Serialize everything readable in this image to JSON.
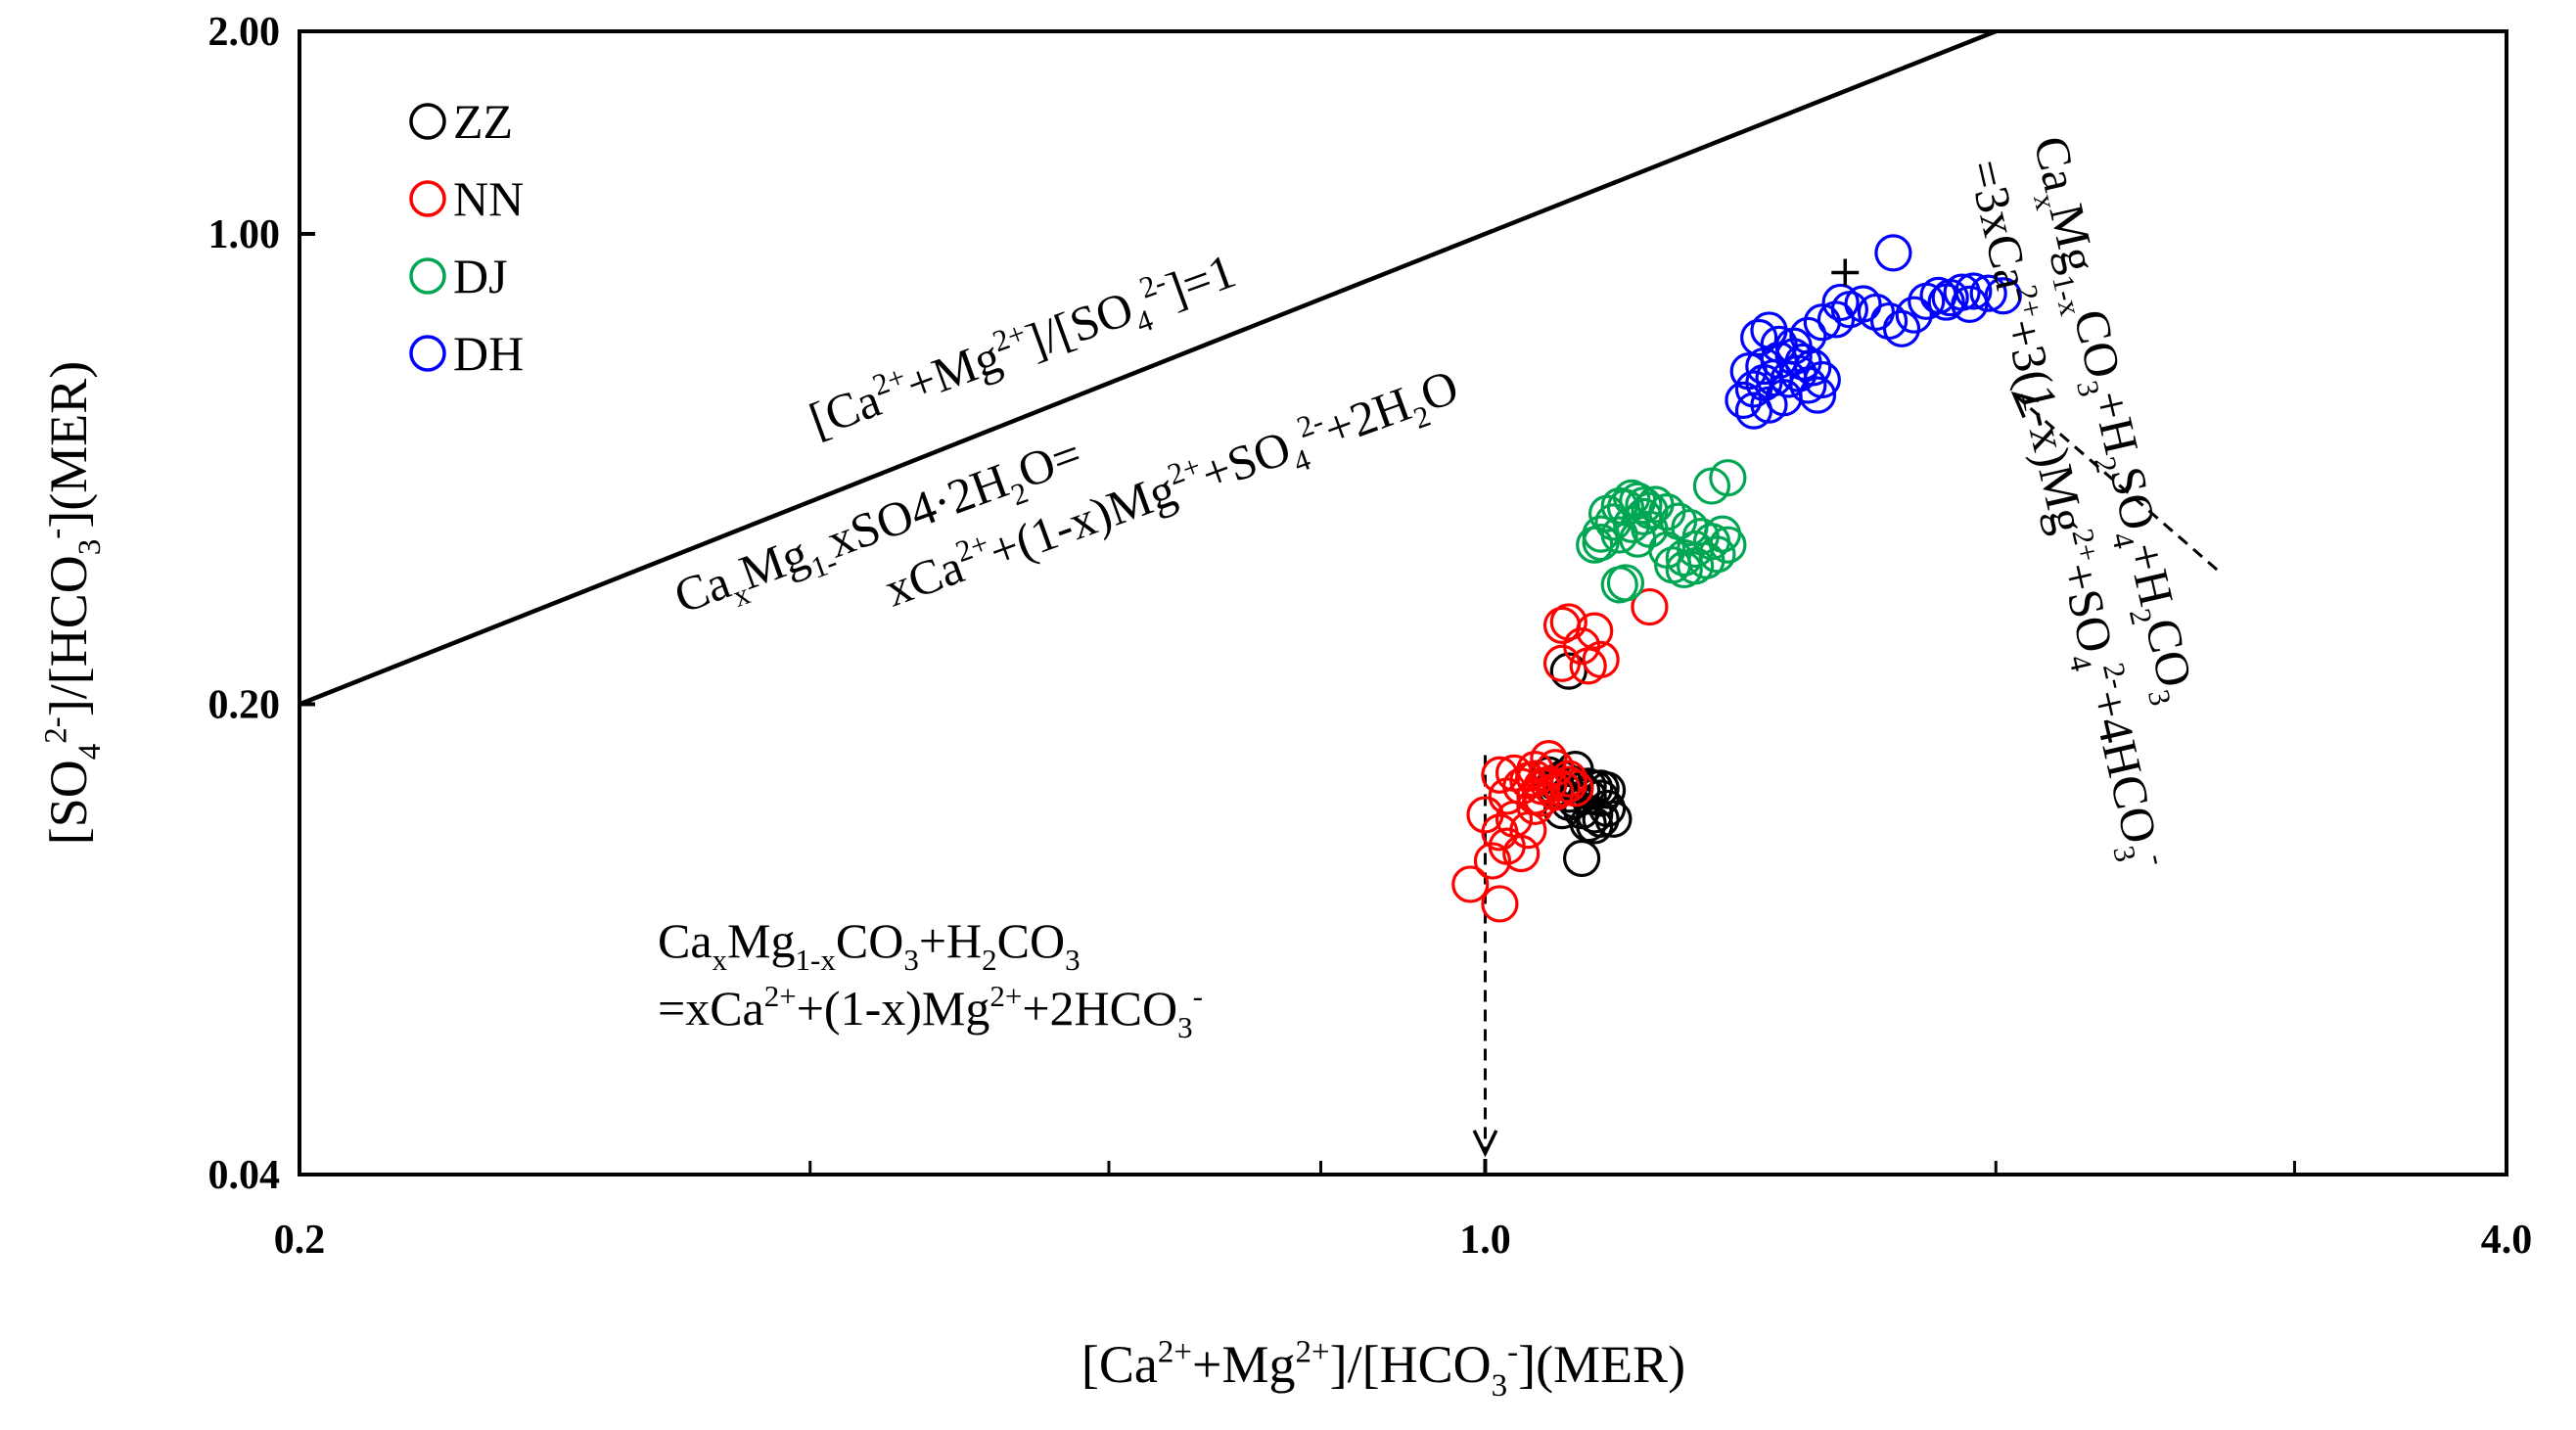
{
  "chart_data": {
    "type": "scatter",
    "x_scale": "log",
    "y_scale": "log",
    "xlim": [
      0.2,
      4.0
    ],
    "ylim": [
      0.04,
      2.0
    ],
    "x_ticks": [
      0.2,
      1.0,
      4.0
    ],
    "x_tick_labels": [
      "0.2",
      "1.0",
      "4.0"
    ],
    "y_ticks": [
      0.04,
      0.2,
      1.0,
      2.0
    ],
    "y_tick_labels": [
      "0.04",
      "0.20",
      "1.00",
      "2.00"
    ],
    "xlabel": "[Ca²⁺+Mg²⁺]/[HCO₃⁻](MER)",
    "ylabel": "[SO₄²⁻]/[HCO₃⁻](MER)",
    "legend_position": "top-left",
    "colors": {
      "ZZ": "#000000",
      "NN": "#ff0000",
      "DJ": "#00a651",
      "DH": "#0000ff"
    },
    "series": [
      {
        "name": "ZZ",
        "color": "#000000",
        "points": [
          [
            1.09,
            0.157
          ],
          [
            1.1,
            0.153
          ],
          [
            1.11,
            0.155
          ],
          [
            1.12,
            0.147
          ],
          [
            1.13,
            0.152
          ],
          [
            1.14,
            0.149
          ],
          [
            1.15,
            0.151
          ],
          [
            1.13,
            0.144
          ],
          [
            1.15,
            0.146
          ],
          [
            1.12,
            0.143
          ],
          [
            1.11,
            0.139
          ],
          [
            1.14,
            0.139
          ],
          [
            1.16,
            0.137
          ],
          [
            1.17,
            0.145
          ],
          [
            1.18,
            0.149
          ],
          [
            1.17,
            0.15
          ],
          [
            1.15,
            0.133
          ],
          [
            1.16,
            0.132
          ],
          [
            1.17,
            0.135
          ],
          [
            1.18,
            0.14
          ],
          [
            1.14,
            0.118
          ],
          [
            1.12,
            0.224
          ],
          [
            1.13,
            0.16
          ],
          [
            1.1,
            0.15
          ],
          [
            1.19,
            0.135
          ],
          [
            1.16,
            0.15
          ]
        ]
      },
      {
        "name": "NN",
        "color": "#ff0000",
        "points": [
          [
            0.98,
            0.108
          ],
          [
            1.01,
            0.117
          ],
          [
            1.03,
            0.123
          ],
          [
            1.05,
            0.12
          ],
          [
            1.02,
            0.129
          ],
          [
            1.04,
            0.135
          ],
          [
            1.0,
            0.137
          ],
          [
            1.06,
            0.13
          ],
          [
            1.07,
            0.141
          ],
          [
            1.08,
            0.145
          ],
          [
            1.03,
            0.146
          ],
          [
            1.05,
            0.151
          ],
          [
            1.02,
            0.157
          ],
          [
            1.04,
            0.158
          ],
          [
            1.07,
            0.155
          ],
          [
            1.09,
            0.152
          ],
          [
            1.1,
            0.148
          ],
          [
            1.11,
            0.15
          ],
          [
            1.12,
            0.152
          ],
          [
            1.08,
            0.151
          ],
          [
            1.06,
            0.154
          ],
          [
            1.07,
            0.16
          ],
          [
            1.12,
            0.155
          ],
          [
            1.13,
            0.15
          ],
          [
            1.1,
            0.161
          ],
          [
            1.09,
            0.166
          ],
          [
            1.11,
            0.262
          ],
          [
            1.12,
            0.265
          ],
          [
            1.16,
            0.257
          ],
          [
            1.14,
            0.244
          ],
          [
            1.17,
            0.233
          ],
          [
            1.11,
            0.23
          ],
          [
            1.15,
            0.228
          ],
          [
            1.25,
            0.279
          ],
          [
            1.02,
            0.101
          ],
          [
            1.07,
            0.146
          ]
        ]
      },
      {
        "name": "DJ",
        "color": "#00a651",
        "points": [
          [
            1.16,
            0.345
          ],
          [
            1.17,
            0.358
          ],
          [
            1.19,
            0.373
          ],
          [
            1.18,
            0.384
          ],
          [
            1.2,
            0.394
          ],
          [
            1.21,
            0.392
          ],
          [
            1.22,
            0.405
          ],
          [
            1.23,
            0.401
          ],
          [
            1.24,
            0.395
          ],
          [
            1.25,
            0.388
          ],
          [
            1.26,
            0.396
          ],
          [
            1.24,
            0.38
          ],
          [
            1.22,
            0.37
          ],
          [
            1.2,
            0.357
          ],
          [
            1.23,
            0.352
          ],
          [
            1.25,
            0.364
          ],
          [
            1.28,
            0.386
          ],
          [
            1.3,
            0.374
          ],
          [
            1.32,
            0.366
          ],
          [
            1.34,
            0.355
          ],
          [
            1.36,
            0.349
          ],
          [
            1.33,
            0.34
          ],
          [
            1.31,
            0.33
          ],
          [
            1.29,
            0.322
          ],
          [
            1.31,
            0.317
          ],
          [
            1.33,
            0.321
          ],
          [
            1.35,
            0.327
          ],
          [
            1.37,
            0.334
          ],
          [
            1.39,
            0.345
          ],
          [
            1.38,
            0.358
          ],
          [
            1.36,
            0.422
          ],
          [
            1.39,
            0.434
          ],
          [
            1.2,
            0.301
          ],
          [
            1.21,
            0.303
          ],
          [
            1.17,
            0.348
          ],
          [
            1.28,
            0.339
          ]
        ]
      },
      {
        "name": "DH",
        "color": "#0000ff",
        "points": [
          [
            1.42,
            0.566
          ],
          [
            1.44,
            0.588
          ],
          [
            1.46,
            0.601
          ],
          [
            1.48,
            0.611
          ],
          [
            1.43,
            0.625
          ],
          [
            1.46,
            0.636
          ],
          [
            1.49,
            0.649
          ],
          [
            1.52,
            0.657
          ],
          [
            1.54,
            0.645
          ],
          [
            1.56,
            0.633
          ],
          [
            1.53,
            0.62
          ],
          [
            1.51,
            0.608
          ],
          [
            1.55,
            0.596
          ],
          [
            1.58,
            0.607
          ],
          [
            1.57,
            0.576
          ],
          [
            1.44,
            0.546
          ],
          [
            1.47,
            0.557
          ],
          [
            1.5,
            0.571
          ],
          [
            1.47,
            0.719
          ],
          [
            1.45,
            0.701
          ],
          [
            1.49,
            0.685
          ],
          [
            1.52,
            0.681
          ],
          [
            1.55,
            0.706
          ],
          [
            1.58,
            0.739
          ],
          [
            1.61,
            0.746
          ],
          [
            1.64,
            0.772
          ],
          [
            1.67,
            0.787
          ],
          [
            1.7,
            0.765
          ],
          [
            1.73,
            0.742
          ],
          [
            1.76,
            0.723
          ],
          [
            1.79,
            0.758
          ],
          [
            1.82,
            0.794
          ],
          [
            1.85,
            0.81
          ],
          [
            1.88,
            0.804
          ],
          [
            1.91,
            0.819
          ],
          [
            1.94,
            0.822
          ],
          [
            1.98,
            0.816
          ],
          [
            2.02,
            0.809
          ],
          [
            1.93,
            0.786
          ],
          [
            1.87,
            0.792
          ],
          [
            1.74,
            0.937
          ],
          [
            1.62,
            0.791
          ]
        ]
      }
    ],
    "marker": {
      "name": "plus",
      "x": 1.63,
      "y": 0.876
    },
    "lines": [
      {
        "name": "[Ca2+ + Mg2+]/[SO4 2-] = 1",
        "points": [
          [
            0.2,
            0.2
          ],
          [
            2.0,
            2.0
          ]
        ]
      }
    ],
    "arrows": [
      {
        "name": "carbonic-acid-arrow",
        "from": [
          1.0,
          0.168
        ],
        "to": [
          1.0,
          0.043
        ]
      },
      {
        "name": "sulfuric-acid-arrow",
        "from": [
          2.7,
          0.317
        ],
        "to": [
          2.05,
          0.578
        ]
      }
    ],
    "annotations": {
      "line_label": {
        "parts": [
          [
            "[Ca"
          ],
          [
            "2+",
            "sup"
          ],
          [
            "+Mg"
          ],
          [
            "2+",
            "sup"
          ],
          [
            "]/[SO"
          ],
          [
            "4",
            "sub"
          ],
          [
            "2-",
            "sup"
          ],
          [
            "]=1"
          ]
        ]
      },
      "gypsum_line1": {
        "parts": [
          [
            "Ca"
          ],
          [
            "x",
            "sub"
          ],
          [
            "Mg"
          ],
          [
            "1-",
            "sub"
          ],
          [
            "xSO4·2H"
          ],
          [
            "2",
            "sub"
          ],
          [
            "O="
          ]
        ]
      },
      "gypsum_line2": {
        "parts": [
          [
            "xCa"
          ],
          [
            "2+",
            "sup"
          ],
          [
            "+(1-x)Mg"
          ],
          [
            "2+",
            "sup"
          ],
          [
            "+SO"
          ],
          [
            "4",
            "sub"
          ],
          [
            "2-",
            "sup"
          ],
          [
            "+2H"
          ],
          [
            "2",
            "sub"
          ],
          [
            "O"
          ]
        ]
      },
      "carbonate_line1": {
        "parts": [
          [
            "Ca"
          ],
          [
            "x",
            "sub"
          ],
          [
            "Mg"
          ],
          [
            "1-x",
            "sub"
          ],
          [
            "CO"
          ],
          [
            "3",
            "sub"
          ],
          [
            "+H"
          ],
          [
            "2",
            "sub"
          ],
          [
            "CO"
          ],
          [
            "3",
            "sub"
          ]
        ]
      },
      "carbonate_line2": {
        "parts": [
          [
            "=xCa"
          ],
          [
            "2+",
            "sup"
          ],
          [
            "+(1-x)Mg"
          ],
          [
            "2+",
            "sup"
          ],
          [
            "+2HCO"
          ],
          [
            "3",
            "sub"
          ],
          [
            "-",
            "sup"
          ]
        ]
      },
      "sulfuric_line1": {
        "parts": [
          [
            "Ca"
          ],
          [
            "x",
            "sub"
          ],
          [
            "Mg"
          ],
          [
            "1-x",
            "sub"
          ],
          [
            "CO"
          ],
          [
            "3",
            "sub"
          ],
          [
            "+H"
          ],
          [
            "2",
            "sub"
          ],
          [
            "SO"
          ],
          [
            "4",
            "sub"
          ],
          [
            "+H"
          ],
          [
            "2",
            "sub"
          ],
          [
            "CO"
          ],
          [
            "3",
            "sub"
          ]
        ]
      },
      "sulfuric_line2": {
        "parts": [
          [
            "=3xCa"
          ],
          [
            "2+",
            "sup"
          ],
          [
            "+3(1-x)Mg"
          ],
          [
            "2+",
            "sup"
          ],
          [
            "+SO"
          ],
          [
            "4",
            "sub"
          ],
          [
            "2-",
            "sup"
          ],
          [
            "+4HCO"
          ],
          [
            "3",
            "sub"
          ],
          [
            "-",
            "sup"
          ]
        ]
      }
    },
    "xlabel_parts": [
      [
        "[Ca"
      ],
      [
        "2+",
        "sup"
      ],
      [
        "+Mg"
      ],
      [
        "2+",
        "sup"
      ],
      [
        "]/[HCO"
      ],
      [
        "3",
        "sub"
      ],
      [
        "-",
        "sup"
      ],
      [
        "](MER)"
      ]
    ],
    "ylabel_parts": [
      [
        "[SO"
      ],
      [
        "4",
        "sub"
      ],
      [
        "2-",
        "sup"
      ],
      [
        "]/[HCO"
      ],
      [
        "3",
        "sub"
      ],
      [
        "-",
        "sup"
      ],
      [
        "](MER)"
      ]
    ]
  }
}
